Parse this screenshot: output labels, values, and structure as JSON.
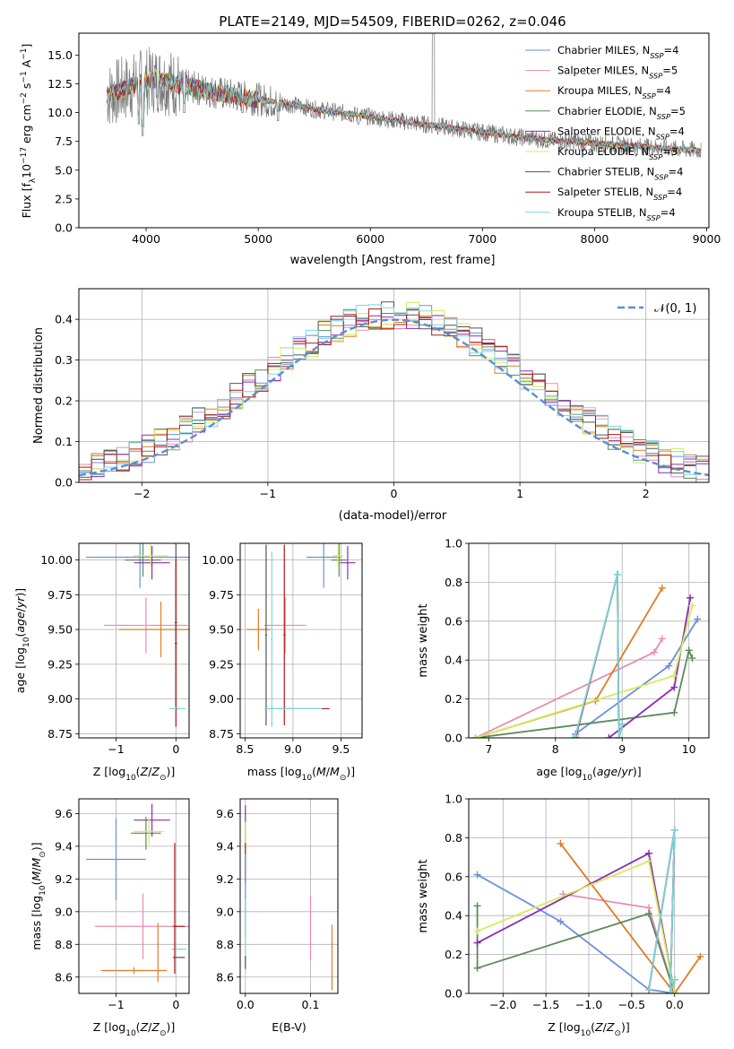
{
  "title": "PLATE=2149, MJD=54509, FIBERID=0262, z=0.046",
  "colors": {
    "Chabrier MILES": "#6a8fdc",
    "Salpeter MILES": "#e98bb5",
    "Kroupa MILES": "#e07b22",
    "Chabrier ELODIE": "#5a8a5a",
    "Salpeter ELODIE": "#8e2ab0",
    "Kroupa ELODIE": "#d4ec5a",
    "Chabrier STELIB": "#555555",
    "Salpeter STELIB": "#b01818",
    "Kroupa STELIB": "#7ad6de"
  },
  "chart_data": [
    {
      "id": "spectrum",
      "type": "line",
      "xlabel": "wavelength [Angstrom, rest frame]",
      "ylabel": "Flux [f_λ 10^-17 erg cm^-2 s^-1 A^-1]",
      "xlim": [
        3400,
        9020
      ],
      "ylim": [
        0,
        16.9
      ],
      "xticks": [
        4000,
        5000,
        6000,
        7000,
        8000,
        9000
      ],
      "yticks": [
        "0.0",
        "2.5",
        "5.0",
        "7.5",
        "10.0",
        "12.5",
        "15.0"
      ],
      "grid": false,
      "legend_position": "top-right",
      "legend": [
        {
          "key": "Chabrier MILES",
          "pre": "Chabrier MILES, N",
          "post": "=4"
        },
        {
          "key": "Salpeter MILES",
          "pre": "Salpeter MILES, N",
          "post": "=5"
        },
        {
          "key": "Kroupa MILES",
          "pre": "Kroupa MILES, N",
          "post": "=4"
        },
        {
          "key": "Chabrier ELODIE",
          "pre": "Chabrier ELODIE, N",
          "post": "=5"
        },
        {
          "key": "Salpeter ELODIE",
          "pre": "Salpeter ELODIE, N",
          "post": "=4"
        },
        {
          "key": "Kroupa ELODIE",
          "pre": "Kroupa ELODIE, N",
          "post": "=3"
        },
        {
          "key": "Chabrier STELIB",
          "pre": "Chabrier STELIB, N",
          "post": "=4"
        },
        {
          "key": "Salpeter STELIB",
          "pre": "Salpeter STELIB, N",
          "post": "=4"
        },
        {
          "key": "Kroupa STELIB",
          "pre": "Kroupa STELIB, N",
          "post": "=4"
        }
      ],
      "continuum": [
        [
          3650,
          11.5
        ],
        [
          3800,
          12.0
        ],
        [
          3950,
          12.6
        ],
        [
          4100,
          12.9
        ],
        [
          4300,
          12.4
        ],
        [
          4500,
          12.0
        ],
        [
          4700,
          11.6
        ],
        [
          4900,
          11.3
        ],
        [
          5100,
          11.0
        ],
        [
          5300,
          10.7
        ],
        [
          5500,
          10.3
        ],
        [
          5800,
          9.9
        ],
        [
          6100,
          9.5
        ],
        [
          6400,
          9.1
        ],
        [
          6700,
          8.7
        ],
        [
          7000,
          8.3
        ],
        [
          7300,
          7.9
        ],
        [
          7600,
          7.6
        ],
        [
          7900,
          7.4
        ],
        [
          8200,
          7.2
        ],
        [
          8500,
          7.0
        ],
        [
          8800,
          6.8
        ],
        [
          8950,
          6.7
        ]
      ],
      "absorption_features": [
        [
          3934,
          9.0
        ],
        [
          3969,
          8.0
        ],
        [
          4102,
          10.5
        ],
        [
          4340,
          10.0
        ],
        [
          4861,
          10.0
        ],
        [
          5175,
          9.3
        ],
        [
          5893,
          9.0
        ],
        [
          6563,
          8.3
        ]
      ]
    },
    {
      "id": "residuals",
      "type": "histogram",
      "xlabel": "(data-model)/error",
      "ylabel": "Normed distribution",
      "xlim": [
        -2.5,
        2.5
      ],
      "ylim": [
        0,
        0.475
      ],
      "xticks": [
        "−2",
        "−1",
        "0",
        "1",
        "2"
      ],
      "yticks": [
        "0.0",
        "0.1",
        "0.2",
        "0.3",
        "0.4"
      ],
      "grid": true,
      "legend_position": "top-right",
      "legend_label": "𝒩(0, 1)",
      "reference_curve": "normal(0,1)",
      "bin_width": 0.1
    },
    {
      "id": "age_vs_Z",
      "type": "errorbar",
      "xlabel": "Z [log10(Z/Z⊙)]",
      "ylabel": "age  [log10(age/yr)]",
      "xlim": [
        -1.62,
        0.22
      ],
      "ylim": [
        8.72,
        10.12
      ],
      "xticks": [
        "−1",
        "0"
      ],
      "yticks": [
        "8.75",
        "9.00",
        "9.25",
        "9.50",
        "9.75",
        "10.00"
      ],
      "grid": true,
      "points": [
        {
          "key": "Chabrier MILES",
          "x": -0.6,
          "y": 10.02,
          "xerr": 0.9,
          "yerr": 0.22
        },
        {
          "key": "Salpeter MILES",
          "x": -0.5,
          "y": 9.53,
          "xerr": 0.7,
          "yerr": 0.2
        },
        {
          "key": "Kroupa MILES",
          "x": -0.25,
          "y": 9.5,
          "xerr": 0.7,
          "yerr": 0.2
        },
        {
          "key": "Chabrier ELODIE",
          "x": -0.55,
          "y": 10.0,
          "xerr": 0.3,
          "yerr": 0.12
        },
        {
          "key": "Salpeter ELODIE",
          "x": -0.4,
          "y": 9.98,
          "xerr": 0.3,
          "yerr": 0.12
        },
        {
          "key": "Kroupa ELODIE",
          "x": -0.42,
          "y": 10.03,
          "xerr": 0.3,
          "yerr": 0.08
        },
        {
          "key": "Chabrier STELIB",
          "x": 0.0,
          "y": 9.55,
          "xerr": 0.02,
          "yerr": 0.6
        },
        {
          "key": "Salpeter STELIB",
          "x": 0.0,
          "y": 9.4,
          "xerr": 0.02,
          "yerr": 0.6
        },
        {
          "key": "Kroupa STELIB",
          "x": 0.02,
          "y": 8.93,
          "xerr": 0.14,
          "yerr": 0.01
        }
      ]
    },
    {
      "id": "age_vs_mass",
      "type": "errorbar",
      "xlabel": "mass [log10(M/M⊙)]",
      "xlim": [
        8.45,
        9.72
      ],
      "ylim": [
        8.72,
        10.12
      ],
      "xticks": [
        "8.5",
        "9.0",
        "9.5"
      ],
      "yticks": [
        "8.75",
        "9.00",
        "9.25",
        "9.50",
        "9.75",
        "10.00"
      ],
      "grid": true,
      "points": [
        {
          "key": "Chabrier MILES",
          "x": 9.32,
          "y": 10.02,
          "xerr": 0.18,
          "yerr": 0.22
        },
        {
          "key": "Salpeter MILES",
          "x": 8.92,
          "y": 9.53,
          "xerr": 0.22,
          "yerr": 0.2
        },
        {
          "key": "Kroupa MILES",
          "x": 8.64,
          "y": 9.5,
          "xerr": 0.12,
          "yerr": 0.15
        },
        {
          "key": "Chabrier ELODIE",
          "x": 9.48,
          "y": 10.0,
          "xerr": 0.08,
          "yerr": 0.12
        },
        {
          "key": "Salpeter ELODIE",
          "x": 9.57,
          "y": 9.98,
          "xerr": 0.08,
          "yerr": 0.12
        },
        {
          "key": "Kroupa ELODIE",
          "x": 9.47,
          "y": 10.03,
          "xerr": 0.06,
          "yerr": 0.08
        },
        {
          "key": "Chabrier STELIB",
          "x": 8.72,
          "y": 9.46,
          "xerr": 0.01,
          "yerr": 0.65
        },
        {
          "key": "Salpeter STELIB",
          "x": 8.91,
          "y": 9.46,
          "xerr": 0.01,
          "yerr": 0.65
        },
        {
          "key": "Kroupa STELIB",
          "x": 8.78,
          "y": 9.43,
          "xerr": 0.01,
          "yerr": 0.63
        },
        {
          "key": "Salpeter STELIB",
          "x": 9.08,
          "y": 8.93,
          "xerr": 0.3,
          "yerr": 0.0
        },
        {
          "key": "Kroupa STELIB",
          "x": 9.0,
          "y": 8.93,
          "xerr": 0.3,
          "yerr": 0.0
        }
      ]
    },
    {
      "id": "weight_vs_age",
      "type": "line",
      "xlabel": "age  [log10(age/yr)]",
      "ylabel": "mass weight",
      "xlim": [
        6.7,
        10.3
      ],
      "ylim": [
        0,
        1.0
      ],
      "xticks": [
        "7",
        "8",
        "9",
        "10"
      ],
      "yticks": [
        "0.0",
        "0.2",
        "0.4",
        "0.6",
        "0.8",
        "1.0"
      ],
      "grid": true,
      "series": [
        {
          "key": "Chabrier MILES",
          "x": [
            8.3,
            9.7,
            10.13
          ],
          "y": [
            0.02,
            0.37,
            0.61
          ]
        },
        {
          "key": "Salpeter MILES",
          "x": [
            6.8,
            9.48,
            9.6
          ],
          "y": [
            0.0,
            0.44,
            0.51
          ]
        },
        {
          "key": "Kroupa MILES",
          "x": [
            6.8,
            8.6,
            9.6
          ],
          "y": [
            0.0,
            0.19,
            0.77
          ]
        },
        {
          "key": "Chabrier ELODIE",
          "x": [
            6.8,
            9.78,
            10.0,
            10.05
          ],
          "y": [
            0.0,
            0.13,
            0.45,
            0.41
          ]
        },
        {
          "key": "Salpeter ELODIE",
          "x": [
            8.8,
            9.78,
            10.02
          ],
          "y": [
            0.0,
            0.26,
            0.72
          ]
        },
        {
          "key": "Kroupa ELODIE",
          "x": [
            6.8,
            9.78,
            10.05
          ],
          "y": [
            0.0,
            0.32,
            0.68
          ]
        },
        {
          "key": "Chabrier STELIB",
          "x": [
            8.3,
            8.93,
            8.95,
            9.0
          ],
          "y": [
            0.0,
            0.84,
            0.0,
            0.07
          ]
        },
        {
          "key": "Salpeter STELIB",
          "x": [
            8.3,
            8.93,
            8.95,
            9.0
          ],
          "y": [
            0.0,
            0.84,
            0.0,
            0.07
          ]
        },
        {
          "key": "Kroupa STELIB",
          "x": [
            8.3,
            8.93,
            8.95,
            9.0
          ],
          "y": [
            0.01,
            0.84,
            0.0,
            0.07
          ]
        }
      ]
    },
    {
      "id": "mass_vs_Z",
      "type": "errorbar",
      "xlabel": "Z [log10(Z/Z⊙)]",
      "ylabel": "mass [log10(M/M⊙)]",
      "xlim": [
        -1.62,
        0.22
      ],
      "ylim": [
        8.5,
        9.69
      ],
      "xticks": [
        "−1",
        "0"
      ],
      "yticks": [
        "8.6",
        "8.8",
        "9.0",
        "9.2",
        "9.4",
        "9.6"
      ],
      "grid": true,
      "points": [
        {
          "key": "Chabrier MILES",
          "x": -1.0,
          "y": 9.32,
          "xerr": 0.5,
          "yerr": 0.25
        },
        {
          "key": "Salpeter MILES",
          "x": -0.55,
          "y": 8.91,
          "xerr": 0.8,
          "yerr": 0.2
        },
        {
          "key": "Kroupa MILES",
          "x": -0.7,
          "y": 8.64,
          "xerr": 0.55,
          "yerr": 0.02
        },
        {
          "key": "Chabrier ELODIE",
          "x": -0.5,
          "y": 9.48,
          "xerr": 0.25,
          "yerr": 0.1
        },
        {
          "key": "Salpeter ELODIE",
          "x": -0.4,
          "y": 9.56,
          "xerr": 0.3,
          "yerr": 0.1
        },
        {
          "key": "Kroupa ELODIE",
          "x": -0.45,
          "y": 9.49,
          "xerr": 0.25,
          "yerr": 0.08
        },
        {
          "key": "Chabrier STELIB",
          "x": 0.05,
          "y": 8.72,
          "xerr": 0.1,
          "yerr": 0.0
        },
        {
          "key": "Salpeter STELIB",
          "x": 0.05,
          "y": 8.91,
          "xerr": 0.1,
          "yerr": 0.0
        },
        {
          "key": "Kroupa STELIB",
          "x": 0.05,
          "y": 8.77,
          "xerr": 0.12,
          "yerr": 0.0
        },
        {
          "key": "Salpeter STELIB",
          "x": -0.02,
          "y": 9.02,
          "xerr": 0.0,
          "yerr": 0.4
        },
        {
          "key": "Kroupa MILES",
          "x": -0.3,
          "y": 8.75,
          "xerr": 0.0,
          "yerr": 0.18
        }
      ]
    },
    {
      "id": "mass_vs_ebv",
      "type": "errorbar",
      "xlabel": "E(B-V)",
      "xlim": [
        -0.008,
        0.142
      ],
      "ylim": [
        8.5,
        9.69
      ],
      "xticks": [
        "0.0",
        "0.1"
      ],
      "yticks": [
        "8.6",
        "8.8",
        "9.0",
        "9.2",
        "9.4",
        "9.6"
      ],
      "grid": true,
      "points": [
        {
          "key": "Salpeter ELODIE",
          "x": 0.0,
          "y": 9.52,
          "xerr": 0.0,
          "yerr": 0.13
        },
        {
          "key": "Kroupa ELODIE",
          "x": 0.0,
          "y": 9.45,
          "xerr": 0.0,
          "yerr": 0.1
        },
        {
          "key": "Salpeter STELIB",
          "x": 0.0,
          "y": 9.3,
          "xerr": 0.0,
          "yerr": 0.12
        },
        {
          "key": "Chabrier MILES",
          "x": 0.0,
          "y": 9.1,
          "xerr": 0.0,
          "yerr": 0.25
        },
        {
          "key": "Kroupa STELIB",
          "x": 0.0,
          "y": 8.88,
          "xerr": 0.0,
          "yerr": 0.2
        },
        {
          "key": "Chabrier STELIB",
          "x": 0.0,
          "y": 8.69,
          "xerr": 0.0,
          "yerr": 0.04
        },
        {
          "key": "Salpeter MILES",
          "x": 0.1,
          "y": 8.9,
          "xerr": 0.0,
          "yerr": 0.2
        },
        {
          "key": "Kroupa MILES",
          "x": 0.133,
          "y": 8.72,
          "xerr": 0.0,
          "yerr": 0.2
        }
      ]
    },
    {
      "id": "weight_vs_Z",
      "type": "line",
      "xlabel": "Z [log10(Z/Z⊙)]",
      "ylabel": "mass weight",
      "xlim": [
        -2.4,
        0.4
      ],
      "ylim": [
        0,
        1.0
      ],
      "xticks": [
        "−2.0",
        "−1.5",
        "−1.0",
        "−0.5",
        "0.0"
      ],
      "yticks": [
        "0.0",
        "0.2",
        "0.4",
        "0.6",
        "0.8",
        "1.0"
      ],
      "grid": true,
      "series": [
        {
          "key": "Chabrier MILES",
          "x": [
            -2.3,
            -1.33,
            -0.3,
            0.0
          ],
          "y": [
            0.61,
            0.37,
            0.02,
            0.0
          ]
        },
        {
          "key": "Salpeter MILES",
          "x": [
            -1.3,
            -0.3,
            0.0
          ],
          "y": [
            0.51,
            0.44,
            0.0
          ]
        },
        {
          "key": "Kroupa MILES",
          "x": [
            -1.33,
            0.0,
            0.3
          ],
          "y": [
            0.77,
            0.0,
            0.19
          ]
        },
        {
          "key": "Chabrier ELODIE",
          "x": [
            -2.3,
            -2.3,
            -0.3,
            0.0
          ],
          "y": [
            0.45,
            0.13,
            0.41,
            0.0
          ]
        },
        {
          "key": "Salpeter ELODIE",
          "x": [
            -2.3,
            -0.3,
            0.0
          ],
          "y": [
            0.26,
            0.72,
            0.0
          ]
        },
        {
          "key": "Kroupa ELODIE",
          "x": [
            -2.3,
            -0.3,
            0.0
          ],
          "y": [
            0.32,
            0.68,
            0.0
          ]
        },
        {
          "key": "Chabrier STELIB",
          "x": [
            -0.3,
            0.0,
            -0.05,
            0.0
          ],
          "y": [
            0.02,
            0.84,
            0.0,
            0.07
          ]
        },
        {
          "key": "Salpeter STELIB",
          "x": [
            -0.3,
            0.0,
            -0.05,
            0.0
          ],
          "y": [
            0.02,
            0.84,
            0.0,
            0.07
          ]
        },
        {
          "key": "Kroupa STELIB",
          "x": [
            -0.3,
            0.0,
            -0.05,
            0.0
          ],
          "y": [
            0.02,
            0.84,
            0.0,
            0.07
          ]
        }
      ]
    }
  ]
}
